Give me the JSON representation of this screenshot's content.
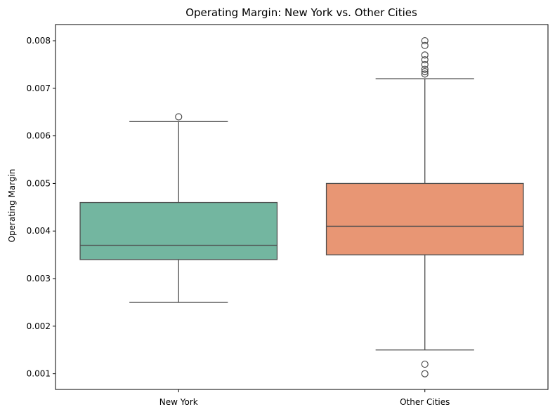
{
  "chart_data": {
    "type": "box",
    "title": "Operating Margin: New York vs. Other Cities",
    "xlabel": "",
    "ylabel": "Operating Margin",
    "ylim": [
      0.00067,
      0.00834
    ],
    "yticks": [
      "0.001",
      "0.002",
      "0.003",
      "0.004",
      "0.005",
      "0.006",
      "0.007",
      "0.008"
    ],
    "ytick_values": [
      0.001,
      0.002,
      0.003,
      0.004,
      0.005,
      0.006,
      0.007,
      0.008
    ],
    "grid": false,
    "categories": [
      "New York",
      "Other Cities"
    ],
    "boxes": [
      {
        "category": "New York",
        "color": "#73b6a0",
        "whisker_low": 0.0025,
        "q1": 0.0034,
        "median": 0.0037,
        "q3": 0.0046,
        "whisker_high": 0.0063,
        "outliers": [
          0.0064
        ]
      },
      {
        "category": "Other Cities",
        "color": "#e89674",
        "whisker_low": 0.0015,
        "q1": 0.0035,
        "median": 0.0041,
        "q3": 0.005,
        "whisker_high": 0.0072,
        "outliers": [
          0.0073,
          0.00735,
          0.0074,
          0.0075,
          0.0076,
          0.0077,
          0.0079,
          0.008,
          0.0012,
          0.001
        ]
      }
    ]
  }
}
